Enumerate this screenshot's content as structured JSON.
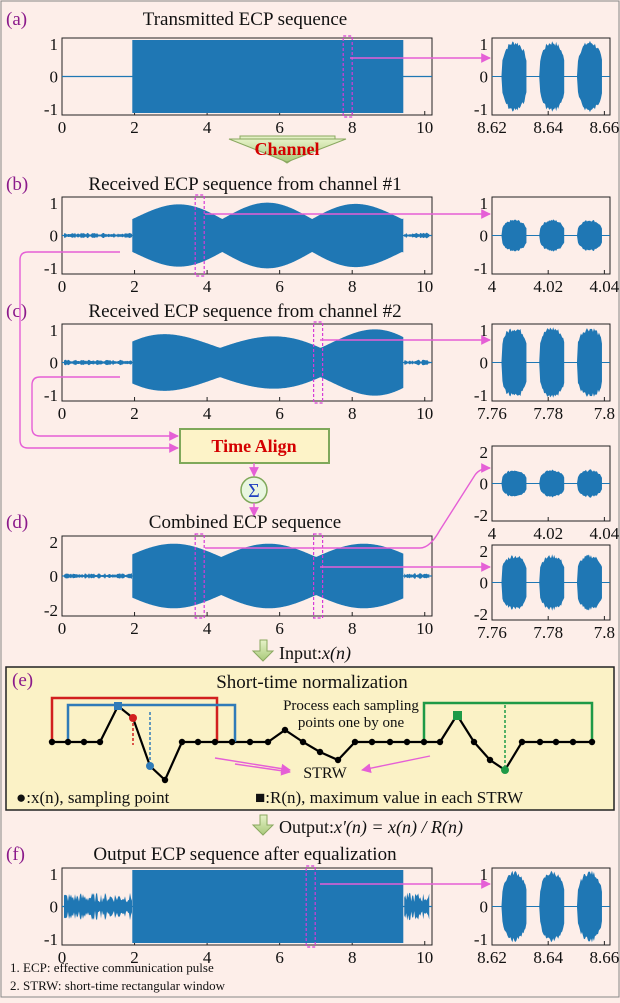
{
  "panels": [
    {
      "id": "a",
      "label": "(a)",
      "title": "Transmitted ECP sequence",
      "yticks": [
        "1",
        "0",
        "-1"
      ],
      "xticks": [
        "0",
        "2",
        "4",
        "6",
        "8",
        "10"
      ],
      "zoom_yticks": [
        "1",
        "0",
        "-1"
      ],
      "zoom_xticks": [
        "8.62",
        "8.64",
        "8.66"
      ]
    },
    {
      "id": "b",
      "label": "(b)",
      "title": "Received ECP sequence from channel #1",
      "yticks": [
        "1",
        "0",
        "-1"
      ],
      "xticks": [
        "0",
        "2",
        "4",
        "6",
        "8",
        "10"
      ],
      "zoom_yticks": [
        "1",
        "0",
        "-1"
      ],
      "zoom_xticks": [
        "4",
        "4.02",
        "4.04"
      ]
    },
    {
      "id": "c",
      "label": "(c)",
      "title": "Received ECP sequence from channel #2",
      "yticks": [
        "1",
        "0",
        "-1"
      ],
      "xticks": [
        "0",
        "2",
        "4",
        "6",
        "8",
        "10"
      ],
      "zoom_yticks": [
        "1",
        "0",
        "-1"
      ],
      "zoom_xticks": [
        "7.76",
        "7.78",
        "7.8"
      ]
    },
    {
      "id": "d",
      "label": "(d)",
      "title": "Combined ECP sequence",
      "yticks": [
        "2",
        "0",
        "-2"
      ],
      "xticks": [
        "0",
        "2",
        "4",
        "6",
        "8",
        "10"
      ],
      "zoom_top_yticks": [
        "2",
        "0",
        "-2"
      ],
      "zoom_top_xticks": [
        "4",
        "4.02",
        "4.04"
      ],
      "zoom_yticks": [
        "2",
        "0",
        "-2"
      ],
      "zoom_xticks": [
        "7.76",
        "7.78",
        "7.8"
      ]
    },
    {
      "id": "f",
      "label": "(f)",
      "title": "Output ECP sequence after equalization",
      "yticks": [
        "1",
        "0",
        "-1"
      ],
      "xticks": [
        "0",
        "2",
        "4",
        "6",
        "8",
        "10"
      ],
      "zoom_yticks": [
        "1",
        "0",
        "-1"
      ],
      "zoom_xticks": [
        "8.62",
        "8.64",
        "8.66"
      ]
    }
  ],
  "channel_label": "Channel",
  "time_align_label": "Time Align",
  "sum_symbol": "Σ",
  "input_prefix": "Input:",
  "input_expr": "x(n)",
  "output_prefix": "Output:",
  "output_expr": "x'(n) = x(n) / R(n)",
  "normalization": {
    "label": "(e)",
    "title": "Short-time normalization",
    "note_line1": "Process each sampling",
    "note_line2": "points one by one",
    "strw_label": "STRW",
    "legend_sampling": "●:x(n), sampling point",
    "legend_max": "■:R(n), maximum value in each STRW"
  },
  "footnotes": [
    "1. ECP:  effective communication pulse",
    "2. STRW: short-time rectangular window"
  ],
  "colors": {
    "wave": "#1f77b4",
    "label": "#8b1a8b",
    "connector": "#e55fd6",
    "channel_text": "#d40000",
    "box_fill": "#fdf3c8"
  }
}
